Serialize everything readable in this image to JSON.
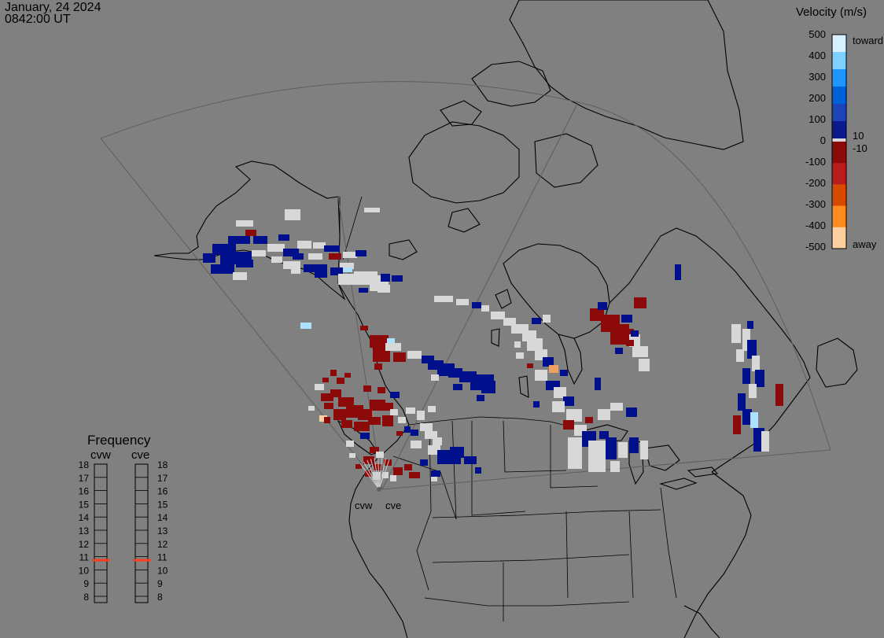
{
  "header": {
    "date": "January, 24 2024",
    "time": "0842:00 UT"
  },
  "velocity_scale": {
    "title": "Velocity (m/s)",
    "ticks": [
      "500",
      "400",
      "300",
      "200",
      "100",
      "0",
      "-100",
      "-200",
      "-300",
      "-400",
      "-500"
    ],
    "small_pos": "10",
    "small_neg": "-10",
    "toward_label": "toward",
    "away_label": "away",
    "colors": [
      "#d6f0ff",
      "#7fd0ff",
      "#1e96ff",
      "#0060d8",
      "#1c44b8",
      "#0a1a8c",
      "#8c0a0a",
      "#b81c1c",
      "#d84a00",
      "#ff8a1e",
      "#ffd0a0"
    ],
    "ground_scatter_color": "#d8d8d8"
  },
  "frequency": {
    "title": "Frequency",
    "radars": [
      "cvw",
      "cve"
    ],
    "scale": [
      "18",
      "17",
      "16",
      "15",
      "14",
      "13",
      "12",
      "11",
      "10",
      "9",
      "8"
    ],
    "selected": "11",
    "marker_color": "#ff3c1e"
  },
  "radar_sites": [
    "cvw",
    "cve"
  ],
  "colors": {
    "background": "#808080",
    "coastline": "#000000",
    "fov_outline": "#6a6a6a",
    "high_positive": "#00108c",
    "high_negative": "#8c0a0a",
    "ground_scatter": "#d8d8d8"
  }
}
